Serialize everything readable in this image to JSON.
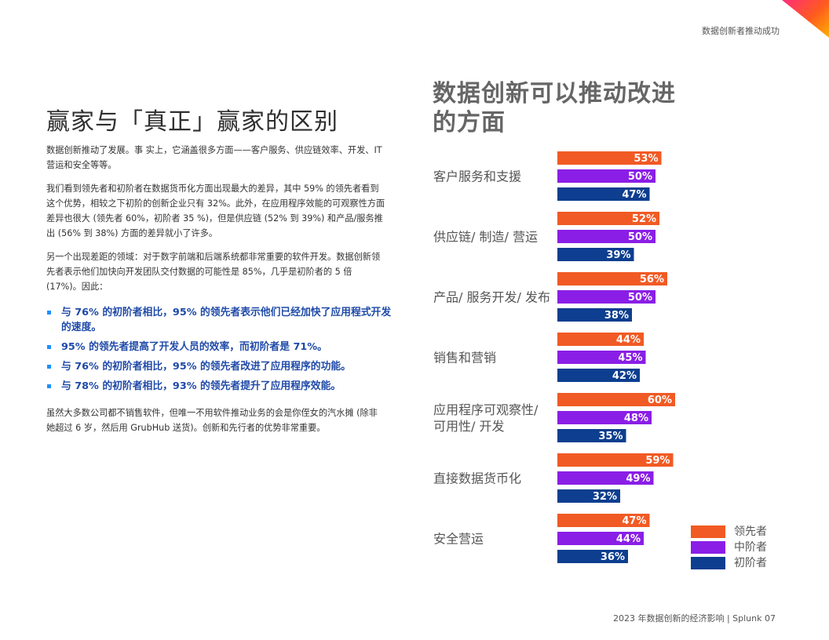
{
  "header": {
    "section_tag": "数据创新者推动成功"
  },
  "left": {
    "title": "赢家与「真正」赢家的区别",
    "p1": "数据创新推动了发展。事 实上，它涵盖很多方面——客户服务、供应链效率、开发、IT 营运和安全等等。",
    "p2": "我们看到领先者和初阶者在数据货币化方面出现最大的差异，其中 59% 的领先者看到这个优势，相较之下初阶的创新企业只有 32%。此外，在应用程序效能的可观察性方面差异也很大 (领先者 60%，初阶者 35 %)，但是供应链 (52% 到 39%) 和产品/服务推出 (56% 到 38%) 方面的差异就小了许多。",
    "p3": "另一个出现差距的领域：对于数字前端和后端系统都非常重要的软件开发。数据创新领先者表示他们加快向开发团队交付数据的可能性是 85%，几乎是初阶者的 5 倍 (17%)。因此：",
    "bullets": [
      "与 76% 的初阶者相比，95% 的领先者表示他们已经加快了应用程式开发的速度。",
      "95% 的领先者提高了开发人员的效率，而初阶者是 71%。",
      "与 76% 的初阶者相比，95% 的领先者改进了应用程序的功能。",
      "与 78% 的初阶者相比，93% 的领先者提升了应用程序效能。"
    ],
    "p4": "虽然大多数公司都不销售软件，但唯一不用软件推动业务的会是你侄女的汽水摊 (除非她超过 6 岁，然后用 GrubHub 送货)。创新和先行者的优势非常重要。"
  },
  "right": {
    "title": "数据创新可以推动改进的方面"
  },
  "chart_data": {
    "type": "bar",
    "orientation": "horizontal",
    "title": "数据创新可以推动改进的方面",
    "categories": [
      [
        "客户服务和支援"
      ],
      [
        "供应链/ 制造/ 营运"
      ],
      [
        "产品/ 服务开发/ 发布"
      ],
      [
        "销售和营销"
      ],
      [
        "应用程序可观察性/",
        "可用性/ 开发"
      ],
      [
        "直接数据货币化"
      ],
      [
        "安全营运"
      ]
    ],
    "series": [
      {
        "name": "领先者",
        "color": "#f15a24",
        "values": [
          53,
          52,
          56,
          44,
          60,
          59,
          47
        ]
      },
      {
        "name": "中阶者",
        "color": "#8a1ee6",
        "values": [
          50,
          50,
          50,
          45,
          48,
          49,
          44
        ]
      },
      {
        "name": "初阶者",
        "color": "#0d3e8f",
        "values": [
          47,
          39,
          38,
          42,
          35,
          32,
          36
        ]
      }
    ],
    "value_suffix": "%",
    "legend_position": "bottom-right",
    "grid": false
  },
  "footer": {
    "text": "2023 年数据创新的经济影响 | Splunk  07"
  }
}
